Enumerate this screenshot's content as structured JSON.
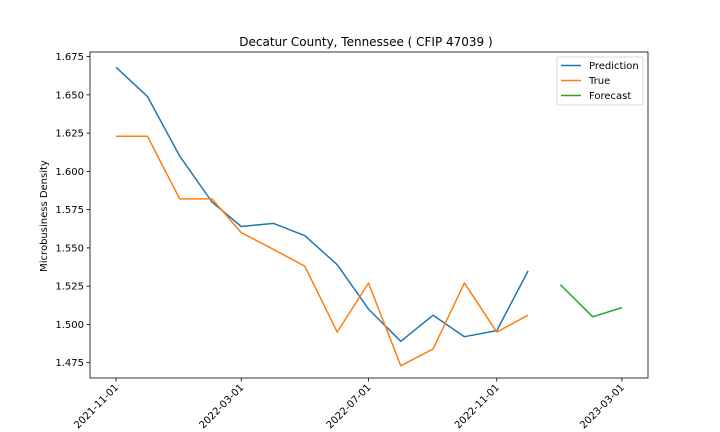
{
  "chart_data": {
    "type": "line",
    "title": "Decatur County, Tennessee ( CFIP 47039 )",
    "xlabel": "",
    "ylabel": "Microbusiness Density",
    "ylim": [
      1.465,
      1.678
    ],
    "xlim": [
      "2021-10-07",
      "2023-03-26"
    ],
    "grid": false,
    "legend_position": "top-right",
    "x_ticks": [
      "2021-11-01",
      "2022-03-01",
      "2022-07-01",
      "2022-11-01",
      "2023-03-01"
    ],
    "y_ticks": [
      "1.475",
      "1.500",
      "1.525",
      "1.550",
      "1.575",
      "1.600",
      "1.625",
      "1.650",
      "1.675"
    ],
    "series": [
      {
        "name": "Prediction",
        "color": "#1f77b4",
        "x": [
          "2021-11-01",
          "2021-12-01",
          "2022-01-01",
          "2022-02-01",
          "2022-03-01",
          "2022-04-01",
          "2022-05-01",
          "2022-06-01",
          "2022-07-01",
          "2022-08-01",
          "2022-09-01",
          "2022-10-01",
          "2022-11-01",
          "2022-12-01"
        ],
        "values": [
          1.668,
          1.649,
          1.61,
          1.58,
          1.564,
          1.566,
          1.558,
          1.539,
          1.51,
          1.489,
          1.506,
          1.492,
          1.496,
          1.535
        ]
      },
      {
        "name": "True",
        "color": "#ff7f0e",
        "x": [
          "2021-11-01",
          "2021-12-01",
          "2022-01-01",
          "2022-02-01",
          "2022-03-01",
          "2022-04-01",
          "2022-05-01",
          "2022-06-01",
          "2022-07-01",
          "2022-08-01",
          "2022-09-01",
          "2022-10-01",
          "2022-11-01",
          "2022-12-01"
        ],
        "values": [
          1.623,
          1.623,
          1.582,
          1.582,
          1.56,
          1.549,
          1.538,
          1.495,
          1.527,
          1.473,
          1.484,
          1.527,
          1.495,
          1.506
        ]
      },
      {
        "name": "Forecast",
        "color": "#2ca02c",
        "x": [
          "2023-01-01",
          "2023-02-01",
          "2023-03-01"
        ],
        "values": [
          1.526,
          1.505,
          1.511
        ]
      }
    ]
  }
}
